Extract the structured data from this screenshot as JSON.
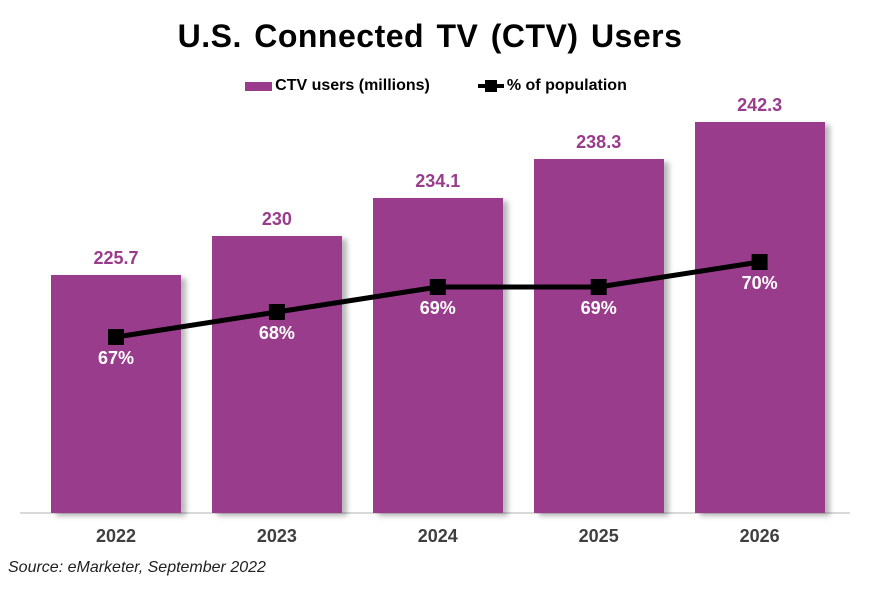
{
  "chart": {
    "title": "U.S. Connected TV (CTV) Users",
    "source": "Source: eMarketer, September 2022",
    "legend": {
      "bars_label": "CTV users (millions)",
      "line_label": "% of population"
    },
    "colors": {
      "bar": "#9A3C8C",
      "line": "#000000",
      "axis": "#D9D9D9",
      "value_label": "#9A3C8C",
      "pct_label": "#FFFFFF",
      "x_label": "#3F3F3F"
    }
  },
  "chart_data": {
    "type": "bar",
    "categories": [
      "2022",
      "2023",
      "2024",
      "2025",
      "2026"
    ],
    "series": [
      {
        "name": "CTV users (millions)",
        "type": "bar",
        "values": [
          225.7,
          230,
          234.1,
          238.3,
          242.3
        ],
        "labels": [
          "225.7",
          "230",
          "234.1",
          "238.3",
          "242.3"
        ]
      },
      {
        "name": "% of population",
        "type": "line",
        "values": [
          67,
          68,
          69,
          69,
          70
        ],
        "labels": [
          "67%",
          "68%",
          "69%",
          "69%",
          "70%"
        ]
      }
    ],
    "title": "U.S. Connected TV (CTV) Users",
    "xlabel": "",
    "ylabel": "",
    "legend_position": "top",
    "grid": false,
    "y_axis_visible": false,
    "ylim": [
      200,
      250
    ],
    "y2lim": [
      60,
      76
    ],
    "source": "Source: eMarketer, September 2022"
  }
}
